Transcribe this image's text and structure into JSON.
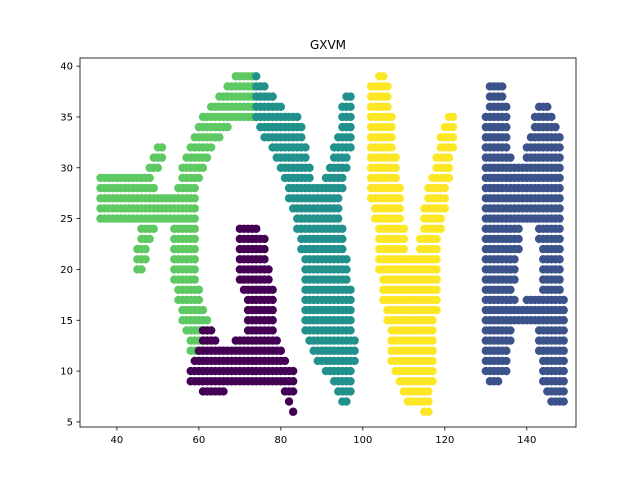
{
  "chart_data": {
    "type": "scatter",
    "title": "GXVM",
    "xlabel": "",
    "ylabel": "",
    "xlim": [
      31,
      152
    ],
    "ylim": [
      4.5,
      40.8
    ],
    "xticks": [
      40,
      60,
      80,
      100,
      120,
      140
    ],
    "yticks": [
      5,
      10,
      15,
      20,
      25,
      30,
      35,
      40
    ],
    "grid": false,
    "legend": "none",
    "colors": {
      "purple": "#440154",
      "navy": "#3b528b",
      "teal": "#21918c",
      "green": "#5ec962",
      "yellow": "#fde725"
    },
    "series": [
      {
        "color": "#5ec962",
        "runs": [
          [
            39,
            69,
            73
          ],
          [
            38,
            67,
            73
          ],
          [
            37,
            65,
            73
          ],
          [
            36,
            63,
            73
          ],
          [
            35,
            61,
            73
          ],
          [
            34,
            60,
            67
          ],
          [
            33,
            59,
            65
          ],
          [
            32,
            50,
            51
          ],
          [
            32,
            58,
            63
          ],
          [
            31,
            49,
            51
          ],
          [
            31,
            57,
            62
          ],
          [
            30,
            48,
            50
          ],
          [
            30,
            56,
            61
          ],
          [
            29,
            36,
            48
          ],
          [
            29,
            56,
            60
          ],
          [
            28,
            36,
            49
          ],
          [
            28,
            55,
            59
          ],
          [
            27,
            36,
            59
          ],
          [
            26,
            36,
            59
          ],
          [
            25,
            36,
            59
          ],
          [
            24,
            46,
            49
          ],
          [
            24,
            54,
            59
          ],
          [
            23,
            46,
            48
          ],
          [
            23,
            54,
            59
          ],
          [
            22,
            45,
            47
          ],
          [
            22,
            54,
            59
          ],
          [
            21,
            45,
            47
          ],
          [
            21,
            54,
            59
          ],
          [
            20,
            45,
            46
          ],
          [
            20,
            54,
            59
          ],
          [
            19,
            54,
            59
          ],
          [
            18,
            55,
            60
          ],
          [
            17,
            55,
            60
          ],
          [
            16,
            56,
            61
          ],
          [
            15,
            56,
            62
          ],
          [
            14,
            57,
            62
          ],
          [
            13,
            58,
            62
          ],
          [
            12,
            58,
            61
          ],
          [
            11,
            59,
            61
          ],
          [
            10,
            60,
            62
          ]
        ]
      },
      {
        "color": "#21918c",
        "runs": [
          [
            39,
            74,
            74
          ],
          [
            38,
            74,
            76
          ],
          [
            37,
            74,
            78
          ],
          [
            37,
            96,
            97
          ],
          [
            36,
            74,
            80
          ],
          [
            36,
            95,
            97
          ],
          [
            35,
            74,
            84
          ],
          [
            35,
            95,
            97
          ],
          [
            34,
            75,
            85
          ],
          [
            34,
            95,
            97
          ],
          [
            33,
            76,
            85
          ],
          [
            33,
            94,
            97
          ],
          [
            32,
            78,
            86
          ],
          [
            32,
            93,
            97
          ],
          [
            31,
            79,
            86
          ],
          [
            31,
            93,
            96
          ],
          [
            30,
            80,
            87
          ],
          [
            30,
            92,
            96
          ],
          [
            29,
            81,
            87
          ],
          [
            29,
            91,
            95
          ],
          [
            28,
            82,
            95
          ],
          [
            27,
            82,
            94
          ],
          [
            26,
            83,
            94
          ],
          [
            25,
            84,
            94
          ],
          [
            24,
            84,
            95
          ],
          [
            23,
            85,
            95
          ],
          [
            22,
            85,
            95
          ],
          [
            21,
            86,
            96
          ],
          [
            20,
            86,
            96
          ],
          [
            19,
            86,
            96
          ],
          [
            18,
            86,
            97
          ],
          [
            17,
            86,
            97
          ],
          [
            16,
            86,
            97
          ],
          [
            15,
            86,
            97
          ],
          [
            14,
            86,
            97
          ],
          [
            13,
            87,
            98
          ],
          [
            12,
            88,
            98
          ],
          [
            11,
            89,
            98
          ],
          [
            10,
            91,
            97
          ],
          [
            9,
            93,
            97
          ],
          [
            8,
            94,
            97
          ],
          [
            7,
            95,
            96
          ]
        ]
      },
      {
        "color": "#440154",
        "runs": [
          [
            24,
            70,
            74
          ],
          [
            23,
            70,
            76
          ],
          [
            22,
            70,
            76
          ],
          [
            21,
            70,
            76
          ],
          [
            20,
            70,
            77
          ],
          [
            19,
            70,
            77
          ],
          [
            18,
            71,
            78
          ],
          [
            17,
            72,
            78
          ],
          [
            16,
            72,
            78
          ],
          [
            15,
            72,
            78
          ],
          [
            14,
            61,
            63
          ],
          [
            14,
            72,
            78
          ],
          [
            13,
            61,
            64
          ],
          [
            13,
            69,
            79
          ],
          [
            12,
            60,
            80
          ],
          [
            11,
            59,
            81
          ],
          [
            10,
            58,
            83
          ],
          [
            9,
            58,
            83
          ],
          [
            8,
            61,
            66
          ],
          [
            8,
            81,
            83
          ],
          [
            7,
            82,
            82
          ],
          [
            6,
            83,
            83
          ]
        ]
      },
      {
        "color": "#fde725",
        "runs": [
          [
            39,
            104,
            105
          ],
          [
            38,
            102,
            106
          ],
          [
            37,
            102,
            106
          ],
          [
            36,
            102,
            106
          ],
          [
            35,
            102,
            107
          ],
          [
            35,
            121,
            122
          ],
          [
            34,
            102,
            107
          ],
          [
            34,
            120,
            122
          ],
          [
            33,
            102,
            107
          ],
          [
            33,
            119,
            122
          ],
          [
            32,
            102,
            107
          ],
          [
            32,
            119,
            122
          ],
          [
            31,
            102,
            108
          ],
          [
            31,
            118,
            121
          ],
          [
            30,
            102,
            108
          ],
          [
            30,
            118,
            121
          ],
          [
            29,
            102,
            108
          ],
          [
            29,
            117,
            121
          ],
          [
            28,
            102,
            109
          ],
          [
            28,
            116,
            120
          ],
          [
            27,
            102,
            109
          ],
          [
            27,
            116,
            120
          ],
          [
            26,
            103,
            109
          ],
          [
            26,
            115,
            120
          ],
          [
            25,
            103,
            109
          ],
          [
            25,
            115,
            119
          ],
          [
            24,
            104,
            110
          ],
          [
            24,
            115,
            119
          ],
          [
            23,
            104,
            110
          ],
          [
            23,
            114,
            118
          ],
          [
            22,
            104,
            110
          ],
          [
            22,
            114,
            118
          ],
          [
            21,
            104,
            118
          ],
          [
            20,
            104,
            118
          ],
          [
            19,
            105,
            118
          ],
          [
            18,
            105,
            118
          ],
          [
            17,
            105,
            118
          ],
          [
            16,
            106,
            118
          ],
          [
            15,
            106,
            117
          ],
          [
            14,
            107,
            117
          ],
          [
            13,
            107,
            117
          ],
          [
            12,
            107,
            117
          ],
          [
            11,
            107,
            117
          ],
          [
            10,
            108,
            117
          ],
          [
            9,
            109,
            117
          ],
          [
            8,
            110,
            116
          ],
          [
            7,
            111,
            116
          ],
          [
            6,
            115,
            116
          ]
        ]
      },
      {
        "color": "#3b528b",
        "runs": [
          [
            38,
            131,
            134
          ],
          [
            37,
            131,
            134
          ],
          [
            36,
            131,
            135
          ],
          [
            36,
            143,
            145
          ],
          [
            35,
            130,
            135
          ],
          [
            35,
            142,
            146
          ],
          [
            34,
            130,
            135
          ],
          [
            34,
            142,
            147
          ],
          [
            33,
            130,
            135
          ],
          [
            33,
            141,
            148
          ],
          [
            32,
            130,
            135
          ],
          [
            32,
            140,
            148
          ],
          [
            31,
            130,
            136
          ],
          [
            31,
            140,
            148
          ],
          [
            30,
            130,
            148
          ],
          [
            29,
            130,
            148
          ],
          [
            28,
            130,
            148
          ],
          [
            27,
            130,
            148
          ],
          [
            26,
            130,
            148
          ],
          [
            25,
            130,
            148
          ],
          [
            24,
            130,
            138
          ],
          [
            24,
            143,
            148
          ],
          [
            23,
            130,
            138
          ],
          [
            23,
            143,
            148
          ],
          [
            22,
            130,
            138
          ],
          [
            22,
            144,
            148
          ],
          [
            21,
            130,
            137
          ],
          [
            21,
            144,
            148
          ],
          [
            20,
            130,
            137
          ],
          [
            20,
            144,
            148
          ],
          [
            19,
            130,
            137
          ],
          [
            19,
            144,
            148
          ],
          [
            18,
            130,
            136
          ],
          [
            18,
            144,
            148
          ],
          [
            17,
            130,
            137
          ],
          [
            17,
            140,
            149
          ],
          [
            16,
            130,
            149
          ],
          [
            15,
            130,
            149
          ],
          [
            14,
            130,
            136
          ],
          [
            14,
            143,
            149
          ],
          [
            13,
            130,
            136
          ],
          [
            13,
            143,
            149
          ],
          [
            12,
            130,
            135
          ],
          [
            12,
            143,
            149
          ],
          [
            11,
            130,
            135
          ],
          [
            11,
            144,
            149
          ],
          [
            10,
            130,
            135
          ],
          [
            10,
            144,
            149
          ],
          [
            9,
            131,
            133
          ],
          [
            9,
            144,
            149
          ],
          [
            8,
            145,
            149
          ],
          [
            7,
            146,
            149
          ]
        ]
      }
    ]
  }
}
